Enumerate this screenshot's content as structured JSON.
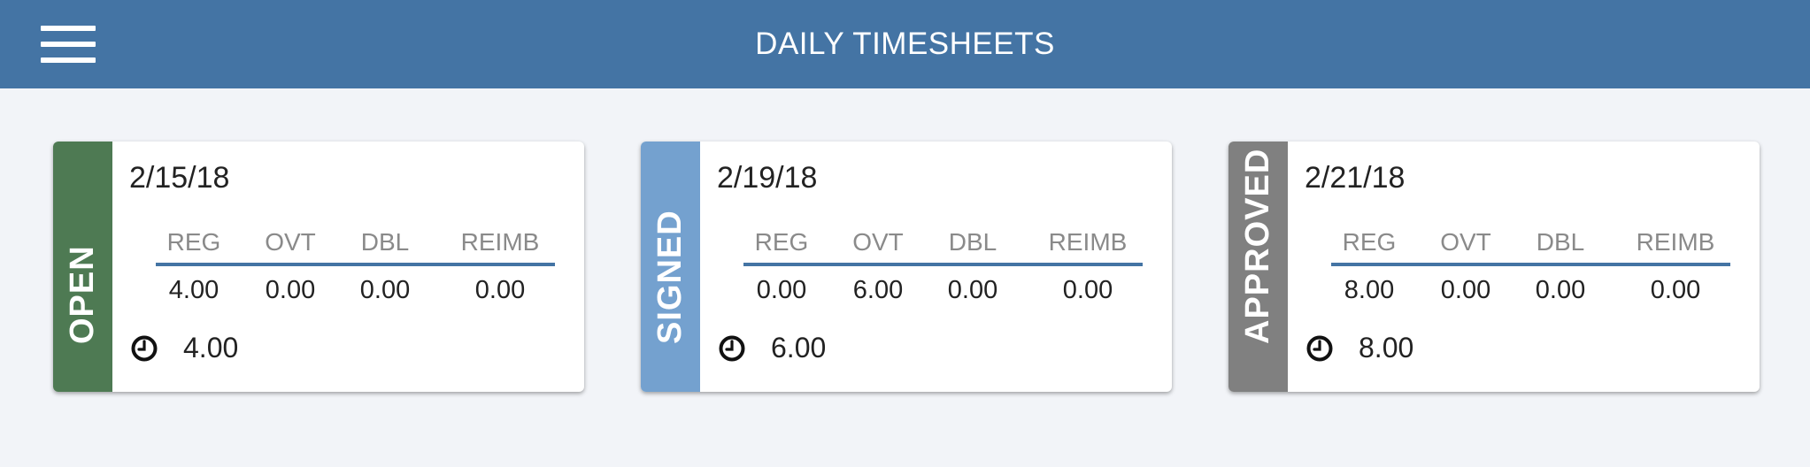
{
  "header": {
    "title": "DAILY TIMESHEETS",
    "menu_icon": "hamburger-menu-icon",
    "background_color": "#4474a4"
  },
  "columns": [
    "REG",
    "OVT",
    "DBL",
    "REIMB"
  ],
  "total_icon": "clock-icon",
  "cards": [
    {
      "status": "OPEN",
      "status_color": "#4e7a53",
      "date": "2/15/18",
      "values": [
        "4.00",
        "0.00",
        "0.00",
        "0.00"
      ],
      "total": "4.00"
    },
    {
      "status": "SIGNED",
      "status_color": "#74a1cf",
      "date": "2/19/18",
      "values": [
        "0.00",
        "6.00",
        "0.00",
        "0.00"
      ],
      "total": "6.00"
    },
    {
      "status": "APPROVED",
      "status_color": "#808080",
      "date": "2/21/18",
      "values": [
        "8.00",
        "0.00",
        "0.00",
        "0.00"
      ],
      "total": "8.00"
    }
  ]
}
